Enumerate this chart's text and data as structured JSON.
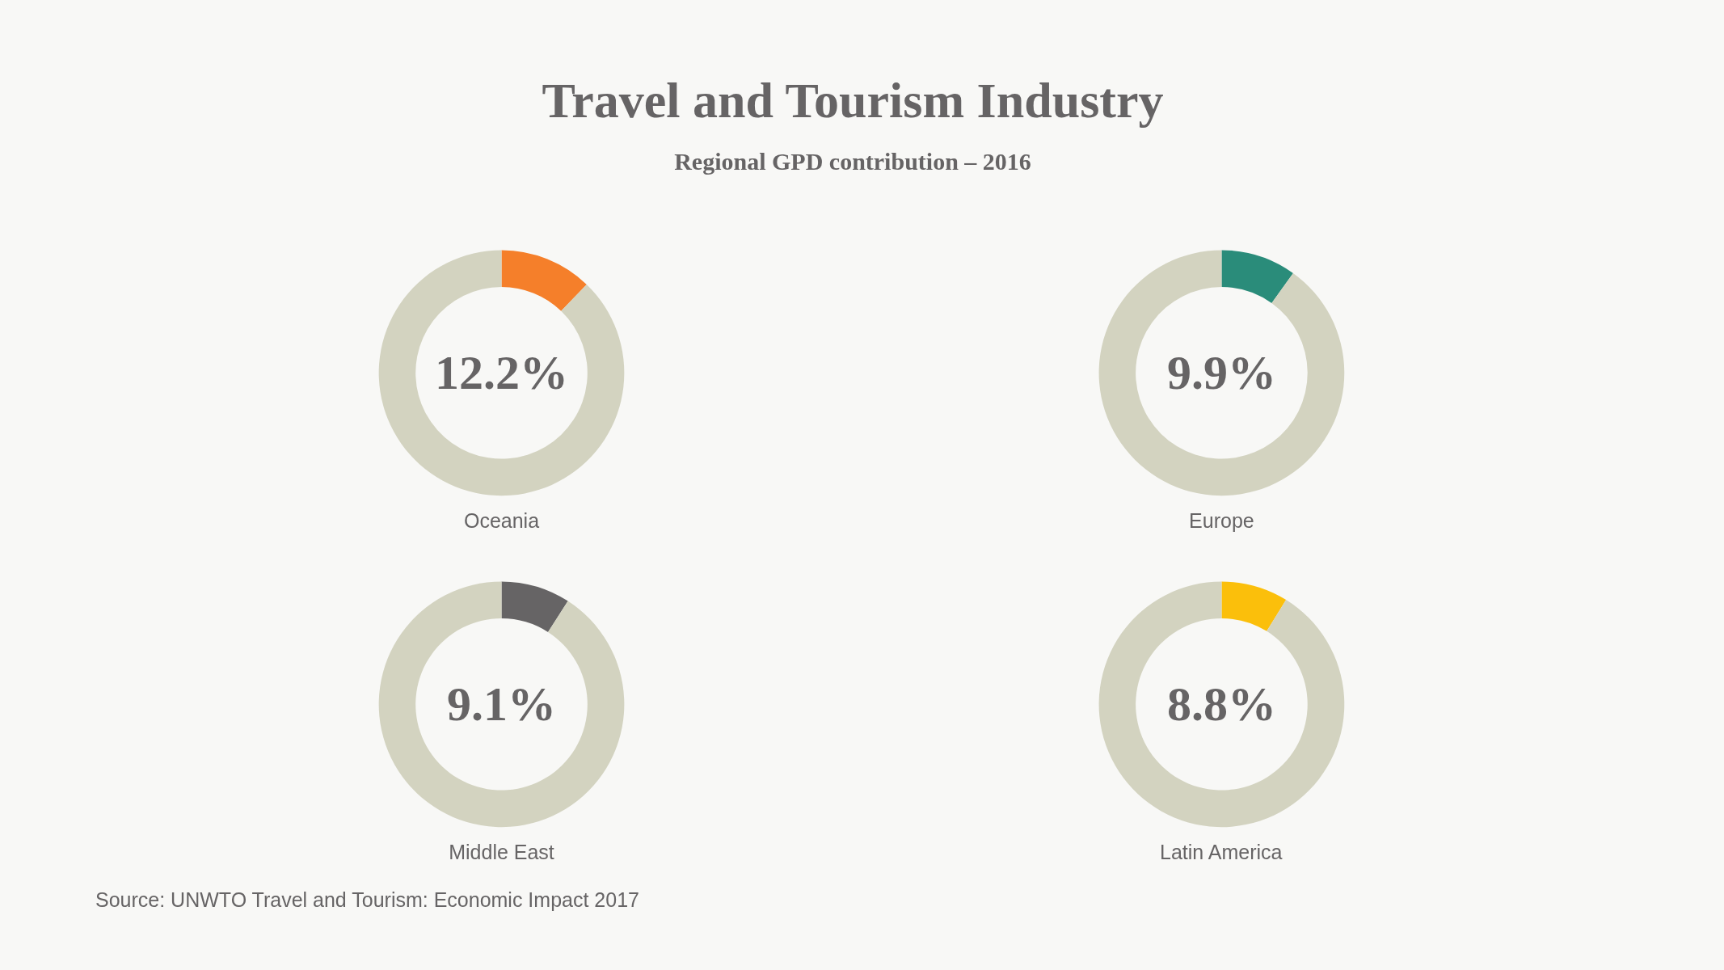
{
  "chart_data": [
    {
      "type": "donut",
      "title": "Travel and Tourism Industry",
      "subtitle": "Regional GPD contribution – 2016",
      "xlabel": "Oceania",
      "categories": [
        null,
        null
      ],
      "values": [
        12.2,
        87.8
      ],
      "colors": [
        "#f57f2a",
        "#d3d3c0"
      ],
      "annotations": [
        "12.2%"
      ]
    },
    {
      "type": "donut",
      "xlabel": "Europe",
      "categories": [
        null,
        null
      ],
      "values": [
        9.9,
        90.1
      ],
      "colors": [
        "#2a8c7a",
        "#d3d3c0"
      ],
      "annotations": [
        "9.9%"
      ]
    },
    {
      "type": "donut",
      "xlabel": "Middle East",
      "categories": [
        null,
        null
      ],
      "values": [
        9.1,
        90.9
      ],
      "colors": [
        "#666465",
        "#d3d3c0"
      ],
      "annotations": [
        "9.1%"
      ]
    },
    {
      "type": "donut",
      "xlabel": "Latin America",
      "categories": [
        null,
        null
      ],
      "values": [
        8.8,
        91.2
      ],
      "colors": [
        "#fbbf0b",
        "#d3d3c0"
      ],
      "annotations": [
        "8.8%",
        "Source: UNWTO Travel and Tourism: Economic Impact 2017"
      ]
    }
  ]
}
